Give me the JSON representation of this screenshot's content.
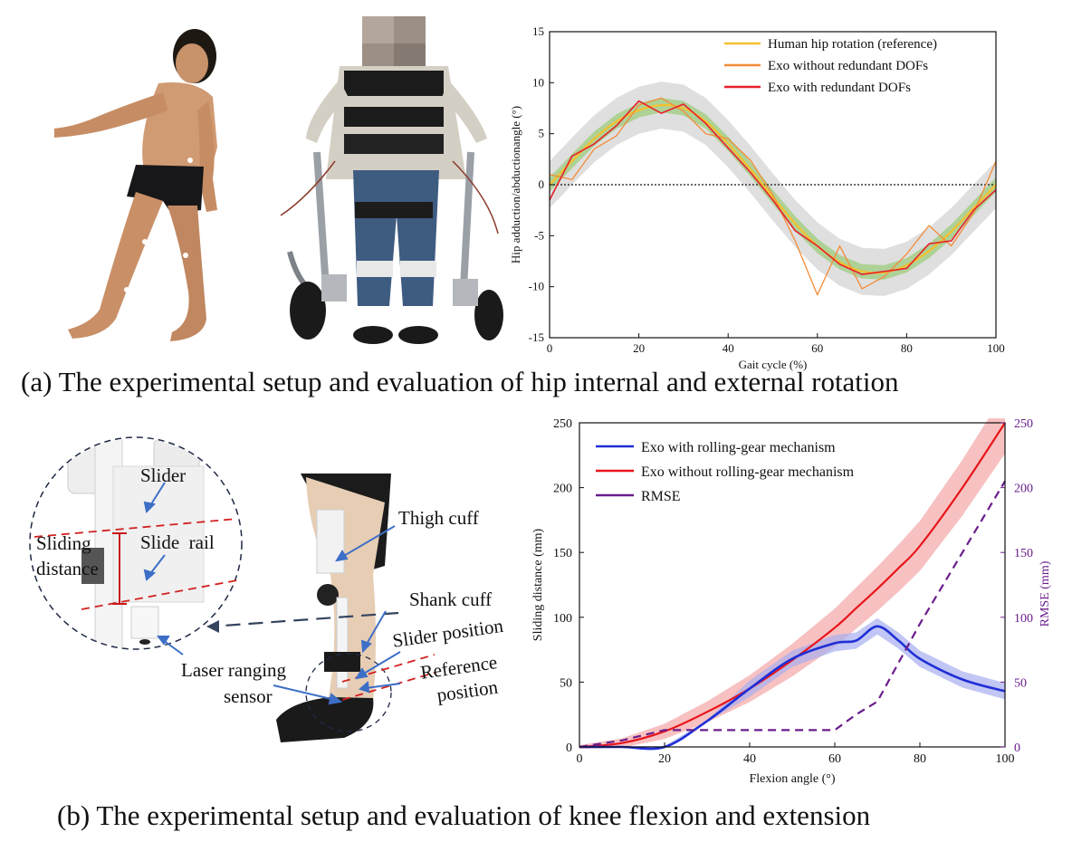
{
  "captions": {
    "a": "(a) The experimental setup and evaluation of hip internal and external rotation",
    "b": "(b) The experimental setup and evaluation of knee flexion and extension"
  },
  "photo_labels": {
    "slider": "Slider",
    "slide_rail": "Slide  rail",
    "sliding_distance_line1": "Sliding",
    "sliding_distance_line2": "distance",
    "thigh_cuff": "Thigh cuff",
    "shank_cuff": "Shank cuff",
    "slider_position": "Slider position",
    "reference_line1": "Reference",
    "reference_line2": "position",
    "laser_line1": "Laser ranging",
    "laser_line2": "sensor"
  },
  "colors": {
    "ref_yellow": "#f2c12e",
    "exo_orange": "#f28c38",
    "exo_red": "#e8202a",
    "blue": "#1f2fd6",
    "red": "#e8151a",
    "purple": "#6b1d8c"
  },
  "chart_data": [
    {
      "type": "line",
      "xlabel": "Gait cycle (%)",
      "ylabel": "Hip adduction/abductionangle (°)",
      "xlim": [
        0,
        100
      ],
      "ylim": [
        -15,
        15
      ],
      "xticks": [
        "0",
        "20",
        "40",
        "60",
        "80",
        "100"
      ],
      "yticks": [
        "15",
        "10",
        "5",
        "0",
        "-5",
        "-10",
        "-15"
      ],
      "legend": [
        "Human hip rotation (reference)",
        "Exo without redundant DOFs",
        "Exo with redundant DOFs"
      ],
      "x": [
        0,
        5,
        10,
        15,
        20,
        25,
        30,
        35,
        40,
        45,
        50,
        55,
        60,
        65,
        70,
        75,
        80,
        85,
        90,
        95,
        100
      ],
      "series": [
        {
          "name": "Human hip rotation (reference)",
          "values": [
            0,
            2.3,
            4.5,
            6.2,
            7.3,
            7.8,
            7.5,
            6.2,
            4.0,
            1.5,
            -1.2,
            -3.8,
            -6.0,
            -7.6,
            -8.5,
            -8.6,
            -7.9,
            -6.5,
            -4.6,
            -2.3,
            0
          ]
        },
        {
          "name": "Exo without redundant DOFs",
          "values": [
            1,
            0.5,
            3.5,
            4.8,
            7.8,
            8.5,
            7.2,
            5.0,
            4.5,
            2.4,
            -1.0,
            -5.5,
            -10.8,
            -6.0,
            -10.2,
            -9.0,
            -6.8,
            -4.0,
            -6.0,
            -2.8,
            2.3
          ]
        },
        {
          "name": "Exo with redundant DOFs",
          "values": [
            -1.5,
            2.8,
            4.0,
            5.8,
            8.2,
            7.0,
            7.9,
            6.0,
            3.6,
            1.2,
            -1.5,
            -4.5,
            -6.0,
            -7.8,
            -8.8,
            -8.5,
            -8.2,
            -5.8,
            -5.5,
            -2.5,
            -0.5
          ]
        }
      ]
    },
    {
      "type": "line",
      "xlabel": "Flexion angle (°)",
      "ylabel": "Sliding distance (mm)",
      "y2label": "RMSE (mm)",
      "xlim": [
        0,
        100
      ],
      "ylim": [
        0,
        250
      ],
      "y2lim": [
        0,
        250
      ],
      "xticks": [
        "0",
        "20",
        "40",
        "60",
        "80",
        "100"
      ],
      "yticks": [
        "0",
        "50",
        "100",
        "150",
        "200",
        "250"
      ],
      "y2ticks": [
        "0",
        "50",
        "100",
        "150",
        "200",
        "250"
      ],
      "legend": [
        "Exo with rolling-gear mechanism",
        "Exo without rolling-gear mechanism",
        "RMSE"
      ],
      "x": [
        0,
        10,
        20,
        30,
        40,
        50,
        60,
        65,
        70,
        75,
        80,
        90,
        100
      ],
      "series": [
        {
          "name": "Exo with rolling-gear mechanism",
          "values": [
            0,
            0,
            0,
            20,
            45,
            68,
            80,
            82,
            93,
            82,
            68,
            52,
            43
          ]
        },
        {
          "name": "Exo without rolling-gear mechanism",
          "values": [
            0,
            3,
            12,
            27,
            45,
            67,
            92,
            107,
            122,
            138,
            155,
            200,
            250
          ]
        },
        {
          "name": "RMSE",
          "axis": "right",
          "values": [
            0,
            5,
            13,
            13,
            13,
            13,
            13,
            25,
            35,
            65,
            95,
            150,
            205
          ]
        }
      ]
    }
  ]
}
